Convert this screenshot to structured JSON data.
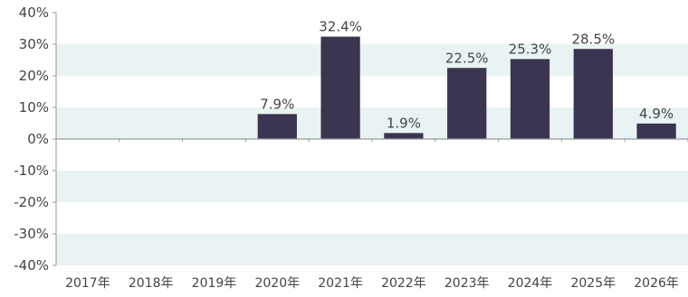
{
  "chart_data": {
    "type": "bar",
    "title": "",
    "xlabel": "",
    "ylabel": "",
    "categories": [
      "2017年",
      "2018年",
      "2019年",
      "2020年",
      "2021年",
      "2022年",
      "2023年",
      "2024年",
      "2025年",
      "2026年"
    ],
    "values": [
      null,
      null,
      null,
      7.9,
      32.4,
      1.9,
      22.5,
      25.3,
      28.5,
      4.9
    ],
    "data_labels": [
      "",
      "",
      "",
      "7.9%",
      "32.4%",
      "1.9%",
      "22.5%",
      "25.3%",
      "28.5%",
      "4.9%"
    ],
    "ylim": [
      -40,
      40
    ],
    "y_ticks": [
      40,
      30,
      20,
      10,
      0,
      -10,
      -20,
      -30,
      -40
    ],
    "y_tick_labels": [
      "40%",
      "30%",
      "20%",
      "10%",
      "0%",
      "-10%",
      "-20%",
      "-30%",
      "-40%"
    ],
    "grid": "alternating horizontal bands",
    "legend": "none",
    "colors": {
      "bar": "#3b3551",
      "band": "#eaf3f3",
      "axis": "#9a9a9a",
      "text": "#444444"
    }
  }
}
